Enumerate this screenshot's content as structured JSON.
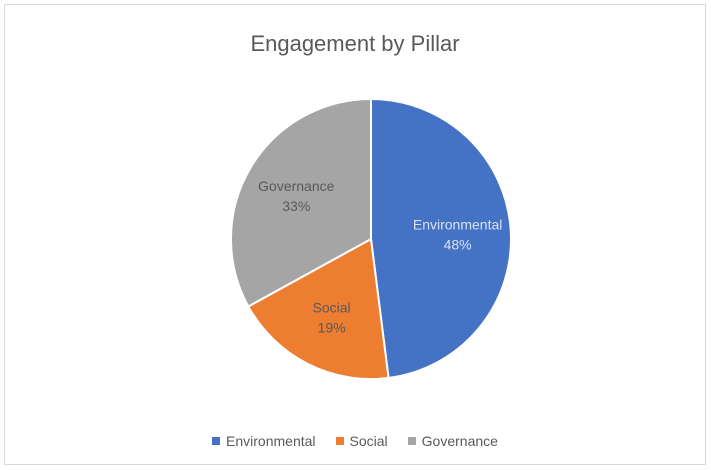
{
  "chart_data": {
    "type": "pie",
    "title": "Engagement by Pillar",
    "categories": [
      "Environmental",
      "Social",
      "Governance"
    ],
    "values": [
      48,
      19,
      33
    ],
    "value_labels": [
      "48%",
      "19%",
      "33%"
    ],
    "colors": [
      "#4472c4",
      "#ed7d31",
      "#a5a5a5"
    ],
    "label_colors": [
      "#d9e2f3",
      "#595959",
      "#595959"
    ],
    "legend_position": "bottom",
    "start_angle": "12 o'clock, clockwise"
  }
}
